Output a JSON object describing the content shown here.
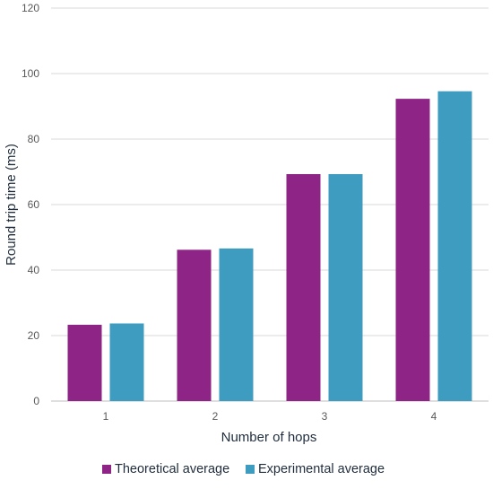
{
  "chart_data": {
    "type": "bar",
    "title": "",
    "xlabel": "Number of hops",
    "ylabel": "Round trip time (ms)",
    "ylim": [
      0,
      120
    ],
    "yticks": [
      0,
      20,
      40,
      60,
      80,
      100,
      120
    ],
    "categories": [
      "1",
      "2",
      "3",
      "4"
    ],
    "series": [
      {
        "name": "Theoretical average",
        "color": "#8e2586",
        "values": [
          23.3,
          46.2,
          69.3,
          92.3
        ]
      },
      {
        "name": "Experimental average",
        "color": "#3f9cc1",
        "values": [
          23.7,
          46.6,
          69.3,
          94.6
        ]
      }
    ],
    "grid": true,
    "legend": "bottom"
  }
}
